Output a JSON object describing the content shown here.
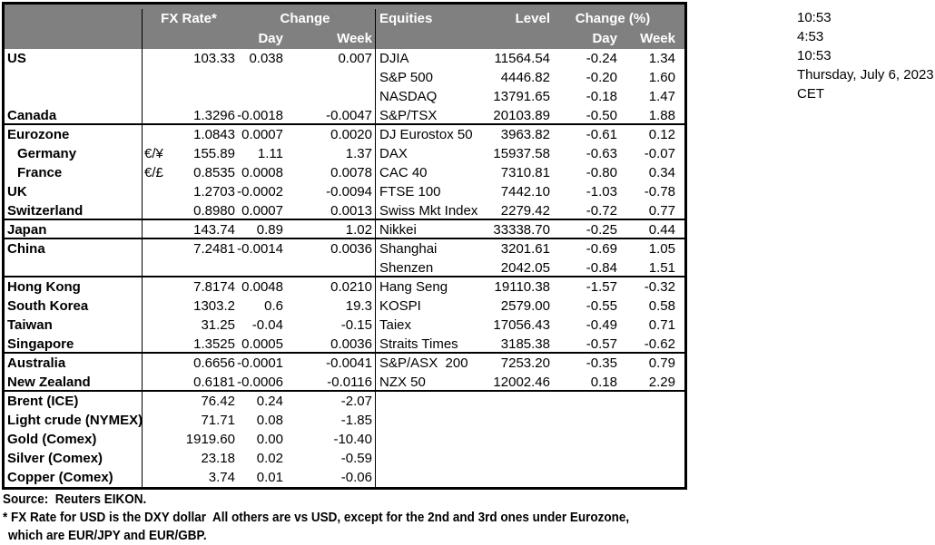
{
  "colors": {
    "header_bg": "#808080",
    "header_text": "#ffffff",
    "border": "#000000",
    "text": "#000000"
  },
  "header": {
    "fx_rate": "FX Rate*",
    "fx_change": "Change",
    "fx_day": "Day",
    "fx_week": "Week",
    "equities": "Equities",
    "level": "Level",
    "eq_change": "Change (%)",
    "eq_day": "Day",
    "eq_week": "Week"
  },
  "clock": {
    "lines": [
      "10:53",
      "4:53",
      "10:53",
      "Thursday, July 6, 2023",
      "CET"
    ]
  },
  "rows": [
    {
      "label": "US",
      "pair": "",
      "fx": [
        "103.33",
        "0.038",
        "0.007"
      ],
      "eq": [
        "DJIA",
        "11564.54",
        "-0.24",
        "1.34"
      ],
      "indent": false,
      "sect": false
    },
    {
      "label": "",
      "pair": "",
      "fx": [
        "",
        "",
        ""
      ],
      "eq": [
        "S&P 500",
        "4446.82",
        "-0.20",
        "1.60"
      ],
      "indent": false,
      "sect": false
    },
    {
      "label": "",
      "pair": "",
      "fx": [
        "",
        "",
        ""
      ],
      "eq": [
        "NASDAQ",
        "13791.65",
        "-0.18",
        "1.47"
      ],
      "indent": false,
      "sect": false
    },
    {
      "label": "Canada",
      "pair": "",
      "fx": [
        "1.3296",
        "-0.0018",
        "-0.0047"
      ],
      "eq": [
        "S&P/TSX",
        "20103.89",
        "-0.50",
        "1.88"
      ],
      "indent": false,
      "sect": true
    },
    {
      "label": "Eurozone",
      "pair": "",
      "fx": [
        "1.0843",
        "0.0007",
        "0.0020"
      ],
      "eq": [
        "DJ Eurostox 50",
        "3963.82",
        "-0.61",
        "0.12"
      ],
      "indent": false,
      "sect": false
    },
    {
      "label": "Germany",
      "pair": "€/¥",
      "fx": [
        "155.89",
        "1.11",
        "1.37"
      ],
      "eq": [
        "DAX",
        "15937.58",
        "-0.63",
        "-0.07"
      ],
      "indent": true,
      "sect": false
    },
    {
      "label": "France",
      "pair": "€/£",
      "fx": [
        "0.8535",
        "0.0008",
        "0.0078"
      ],
      "eq": [
        "CAC 40",
        "7310.81",
        "-0.80",
        "0.34"
      ],
      "indent": true,
      "sect": false
    },
    {
      "label": "UK",
      "pair": "",
      "fx": [
        "1.2703",
        "-0.0002",
        "-0.0094"
      ],
      "eq": [
        "FTSE 100",
        "7442.10",
        "-1.03",
        "-0.78"
      ],
      "indent": false,
      "sect": false
    },
    {
      "label": "Switzerland",
      "pair": "",
      "fx": [
        "0.8980",
        "0.0007",
        "0.0013"
      ],
      "eq": [
        "Swiss Mkt Index",
        "2279.42",
        "-0.72",
        "0.77"
      ],
      "indent": false,
      "sect": true
    },
    {
      "label": "Japan",
      "pair": "",
      "fx": [
        "143.74",
        "0.89",
        "1.02"
      ],
      "eq": [
        "Nikkei",
        "33338.70",
        "-0.25",
        "0.44"
      ],
      "indent": false,
      "sect": true
    },
    {
      "label": "China",
      "pair": "",
      "fx": [
        "7.2481",
        "-0.0014",
        "0.0036"
      ],
      "eq": [
        "Shanghai",
        "3201.61",
        "-0.69",
        "1.05"
      ],
      "indent": false,
      "sect": false
    },
    {
      "label": "",
      "pair": "",
      "fx": [
        "",
        "",
        ""
      ],
      "eq": [
        "Shenzen",
        "2042.05",
        "-0.84",
        "1.51"
      ],
      "indent": false,
      "sect": true
    },
    {
      "label": "Hong Kong",
      "pair": "",
      "fx": [
        "7.8174",
        "0.0048",
        "0.0210"
      ],
      "eq": [
        "Hang Seng",
        "19110.38",
        "-1.57",
        "-0.32"
      ],
      "indent": false,
      "sect": false
    },
    {
      "label": "South Korea",
      "pair": "",
      "fx": [
        "1303.2",
        "0.6",
        "19.3"
      ],
      "eq": [
        "KOSPI",
        "2579.00",
        "-0.55",
        "0.58"
      ],
      "indent": false,
      "sect": false
    },
    {
      "label": "Taiwan",
      "pair": "",
      "fx": [
        "31.25",
        "-0.04",
        "-0.15"
      ],
      "eq": [
        "Taiex",
        "17056.43",
        "-0.49",
        "0.71"
      ],
      "indent": false,
      "sect": false
    },
    {
      "label": "Singapore",
      "pair": "",
      "fx": [
        "1.3525",
        "0.0005",
        "0.0036"
      ],
      "eq": [
        "Straits Times",
        "3185.38",
        "-0.57",
        "-0.62"
      ],
      "indent": false,
      "sect": true
    },
    {
      "label": "Australia",
      "pair": "",
      "fx": [
        "0.6656",
        "-0.0001",
        "-0.0041"
      ],
      "eq": [
        "S&P/ASX  200",
        "7253.20",
        "-0.35",
        "0.79"
      ],
      "indent": false,
      "sect": false
    },
    {
      "label": "New Zealand",
      "pair": "",
      "fx": [
        "0.6181",
        "-0.0006",
        "-0.0116"
      ],
      "eq": [
        "NZX 50",
        "12002.46",
        "0.18",
        "2.29"
      ],
      "indent": false,
      "sect": true
    },
    {
      "label": "Brent (ICE)",
      "pair": "",
      "fx": [
        "76.42",
        "0.24",
        "-2.07"
      ],
      "eq": [
        "",
        "",
        "",
        ""
      ],
      "indent": false,
      "sect": false
    },
    {
      "label": "Light crude (NYMEX)",
      "pair": "",
      "fx": [
        "71.71",
        "0.08",
        "-1.85"
      ],
      "eq": [
        "",
        "",
        "",
        ""
      ],
      "indent": false,
      "sect": false
    },
    {
      "label": "Gold (Comex)",
      "pair": "",
      "fx": [
        "1919.60",
        "0.00",
        "-10.40"
      ],
      "eq": [
        "",
        "",
        "",
        ""
      ],
      "indent": false,
      "sect": false
    },
    {
      "label": "Silver (Comex)",
      "pair": "",
      "fx": [
        "23.18",
        "0.02",
        "-0.59"
      ],
      "eq": [
        "",
        "",
        "",
        ""
      ],
      "indent": false,
      "sect": false
    },
    {
      "label": "Copper (Comex)",
      "pair": "",
      "fx": [
        "3.74",
        "0.01",
        "-0.06"
      ],
      "eq": [
        "",
        "",
        "",
        ""
      ],
      "indent": false,
      "sect": false
    }
  ],
  "footer": {
    "source": "Source:  Reuters EIKON.",
    "note1": "* FX Rate for USD is the DXY dollar  All others are vs USD, except for the 2nd and 3rd ones under Eurozone,",
    "note2": "which are EUR/JPY and EUR/GBP."
  }
}
